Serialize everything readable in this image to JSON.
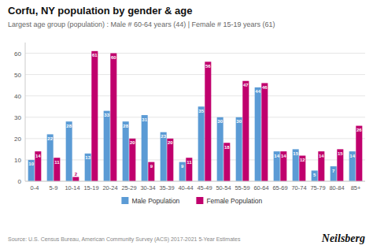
{
  "chart_data": {
    "type": "bar",
    "title": "Corfu, NY population by gender & age",
    "subtitle": "Largest age group (population) : Male # 60-64 years (44) | Female # 15-19 years (61)",
    "categories": [
      "0-4",
      "5-9",
      "10-14",
      "15-19",
      "20-24",
      "25-29",
      "30-34",
      "35-39",
      "40-44",
      "45-49",
      "50-54",
      "55-59",
      "60-64",
      "65-69",
      "70-74",
      "75-79",
      "80-84",
      "85+"
    ],
    "series": [
      {
        "name": "Male Population",
        "color": "#5B9BD5",
        "values": [
          10,
          22,
          28,
          13,
          33,
          28,
          31,
          23,
          9,
          35,
          30,
          30,
          44,
          14,
          15,
          5,
          7,
          14
        ]
      },
      {
        "name": "Female Population",
        "color": "#C0006D",
        "values": [
          14,
          11,
          2,
          61,
          60,
          20,
          9,
          20,
          11,
          56,
          18,
          47,
          46,
          14,
          12,
          14,
          15,
          26
        ]
      }
    ],
    "ylim": [
      0,
      65
    ],
    "yticks": [
      0,
      10,
      20,
      30,
      40,
      50,
      60
    ],
    "grid": true,
    "legend": "bottom",
    "data_labels": true,
    "source": "Source: U.S. Census Bureau, American Community Survey (ACS) 2017-2021 5-Year Estimates",
    "brand": "Neilsberg"
  }
}
